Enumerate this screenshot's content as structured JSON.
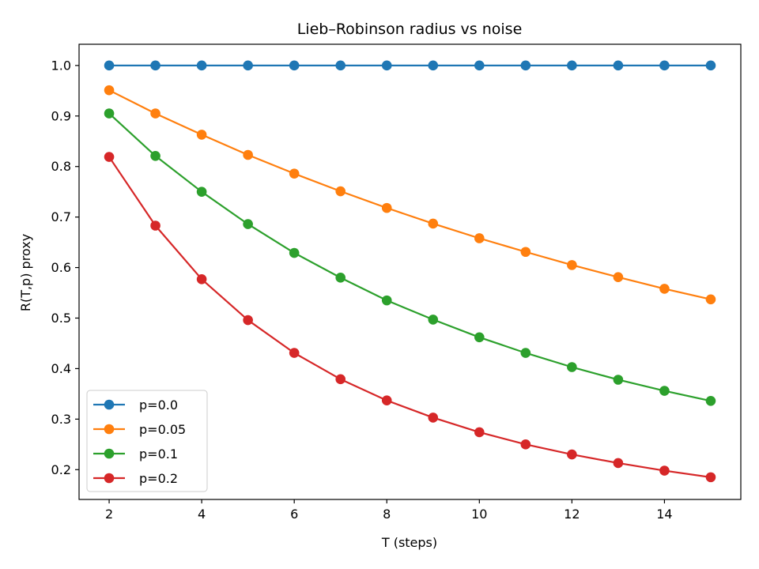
{
  "chart_data": {
    "type": "line",
    "title": "Lieb–Robinson radius vs noise",
    "xlabel": "T (steps)",
    "ylabel": "R(T,p) proxy",
    "xlim": [
      1.35,
      15.65
    ],
    "ylim": [
      0.141,
      1.042
    ],
    "xticks": [
      2,
      4,
      6,
      8,
      10,
      12,
      14
    ],
    "xtick_labels": [
      "2",
      "4",
      "6",
      "8",
      "10",
      "12",
      "14"
    ],
    "yticks": [
      0.2,
      0.3,
      0.4,
      0.5,
      0.6,
      0.7,
      0.8,
      0.9,
      1.0
    ],
    "ytick_labels": [
      "0.2",
      "0.3",
      "0.4",
      "0.5",
      "0.6",
      "0.7",
      "0.8",
      "0.9",
      "1.0"
    ],
    "grid": false,
    "legend_position": "lower-left",
    "x": [
      2,
      3,
      4,
      5,
      6,
      7,
      8,
      9,
      10,
      11,
      12,
      13,
      14,
      15
    ],
    "series": [
      {
        "name": "p=0.0",
        "color": "#1f77b4",
        "values": [
          1.0,
          1.0,
          1.0,
          1.0,
          1.0,
          1.0,
          1.0,
          1.0,
          1.0,
          1.0,
          1.0,
          1.0,
          1.0,
          1.0
        ]
      },
      {
        "name": "p=0.05",
        "color": "#ff7f0e",
        "values": [
          0.951,
          0.905,
          0.863,
          0.823,
          0.786,
          0.751,
          0.718,
          0.687,
          0.658,
          0.631,
          0.605,
          0.581,
          0.558,
          0.537
        ]
      },
      {
        "name": "p=0.1",
        "color": "#2ca02c",
        "values": [
          0.905,
          0.821,
          0.75,
          0.686,
          0.629,
          0.58,
          0.535,
          0.497,
          0.462,
          0.431,
          0.403,
          0.378,
          0.356,
          0.336
        ]
      },
      {
        "name": "p=0.2",
        "color": "#d62728",
        "values": [
          0.819,
          0.683,
          0.577,
          0.496,
          0.431,
          0.379,
          0.337,
          0.303,
          0.274,
          0.25,
          0.23,
          0.213,
          0.198,
          0.185
        ]
      }
    ]
  }
}
